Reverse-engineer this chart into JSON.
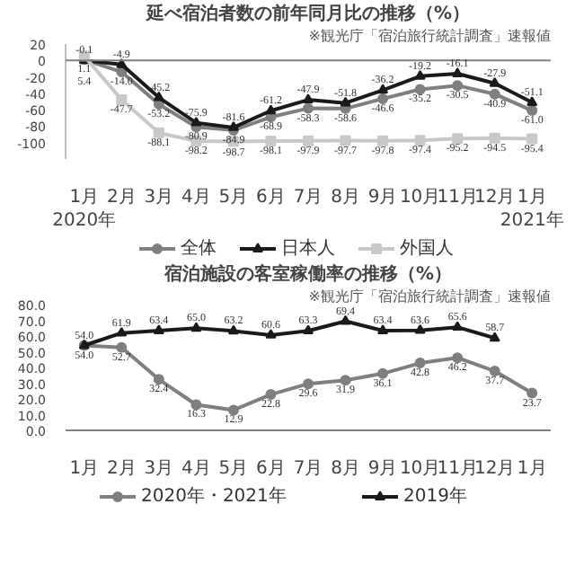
{
  "chart_data": [
    {
      "type": "line",
      "title": "延べ宿泊者数の前年同月比の推移（%）",
      "annotations": [
        "※観光庁「宿泊旅行統計調査」速報値"
      ],
      "categories": [
        "1月\n2020年",
        "2月",
        "3月",
        "4月",
        "5月",
        "6月",
        "7月",
        "8月",
        "9月",
        "10月",
        "11月",
        "12月",
        "1月\n2021年"
      ],
      "series": [
        {
          "name": "全体",
          "color": "#7f7f7f",
          "marker": "circle",
          "values": [
            1.1,
            -14.0,
            -53.2,
            -80.9,
            -84.9,
            -68.9,
            -58.3,
            -58.6,
            -46.6,
            -35.2,
            -30.5,
            -40.9,
            -61.0
          ],
          "value_labels": [
            "1.1",
            "-14.0",
            "-53.2",
            "-80.9",
            "-84.9",
            "-68.9",
            "-58.3",
            "-58.6",
            "-46.6",
            "-35.2",
            "-30.5",
            "-40.9",
            "-61.0"
          ]
        },
        {
          "name": "日本人",
          "color": "#1a1a1a",
          "marker": "triangle",
          "values": [
            -0.1,
            -4.9,
            -45.2,
            -75.9,
            -81.6,
            -61.2,
            -47.9,
            -51.8,
            -36.2,
            -19.2,
            -16.1,
            -27.9,
            -51.1
          ],
          "value_labels": [
            "-0.1",
            "-4.9",
            "-45.2",
            "-75.9",
            "-81.6",
            "-61.2",
            "-47.9",
            "-51.8",
            "-36.2",
            "-19.2",
            "-16.1",
            "-27.9",
            "-51.1"
          ]
        },
        {
          "name": "外国人",
          "color": "#c8c8c8",
          "marker": "square",
          "values": [
            5.4,
            -47.7,
            -88.1,
            -98.2,
            -98.7,
            -98.1,
            -97.9,
            -97.7,
            -97.8,
            -97.4,
            -95.2,
            -94.5,
            -95.4
          ],
          "value_labels": [
            "5.4",
            "-47.7",
            "-88.1",
            "-98.2",
            "-98.7",
            "-98.1",
            "-97.9",
            "-97.7",
            "-97.8",
            "-97.4",
            "-95.2",
            "-94.5",
            "-95.4"
          ]
        }
      ],
      "ylim": [
        -120,
        20
      ],
      "yticks": [
        20,
        0,
        -20,
        -40,
        -60,
        -80,
        -100
      ],
      "ref_lines": [
        {
          "axis": "y",
          "value": 0,
          "color": "#808080"
        }
      ],
      "legend": "bottom",
      "grid": false
    },
    {
      "type": "line",
      "title": "宿泊施設の客室稼働率の推移（%）",
      "annotations": [
        "※観光庁「宿泊旅行統計調査」速報値"
      ],
      "categories": [
        "1月",
        "2月",
        "3月",
        "4月",
        "5月",
        "6月",
        "7月",
        "8月",
        "9月",
        "10月",
        "11月",
        "12月",
        "1月"
      ],
      "series": [
        {
          "name": "2020年・2021年",
          "color": "#7f7f7f",
          "marker": "circle",
          "values": [
            54.0,
            52.7,
            32.4,
            16.3,
            12.9,
            22.8,
            29.6,
            31.9,
            36.1,
            42.8,
            46.2,
            37.7,
            23.7
          ],
          "value_labels": [
            "54.0",
            "52.7",
            "32.4",
            "16.3",
            "12.9",
            "22.8",
            "29.6",
            "31.9",
            "36.1",
            "42.8",
            "46.2",
            "37.7",
            "23.7"
          ]
        },
        {
          "name": "2019年",
          "color": "#1a1a1a",
          "marker": "triangle",
          "values": [
            54.0,
            61.9,
            63.4,
            65.0,
            63.2,
            60.6,
            63.3,
            69.4,
            63.4,
            63.6,
            65.6,
            58.7,
            null
          ],
          "value_labels": [
            "54.0",
            "61.9",
            "63.4",
            "65.0",
            "63.2",
            "60.6",
            "63.3",
            "69.4",
            "63.4",
            "63.6",
            "65.6",
            "58.7",
            null
          ]
        }
      ],
      "ylim": [
        0,
        80
      ],
      "yticks": [
        {
          "value": 0,
          "label": "0.0"
        },
        {
          "value": 10,
          "label": "10.0"
        },
        {
          "value": 20,
          "label": "20.0"
        },
        {
          "value": 30,
          "label": "30.0"
        },
        {
          "value": 40,
          "label": "40.0"
        },
        {
          "value": 50,
          "label": "50.0"
        },
        {
          "value": 60,
          "label": "60.0"
        },
        {
          "value": 70,
          "label": "70.0"
        },
        {
          "value": 80,
          "label": "80.0"
        }
      ],
      "legend": "bottom",
      "grid": false
    }
  ]
}
